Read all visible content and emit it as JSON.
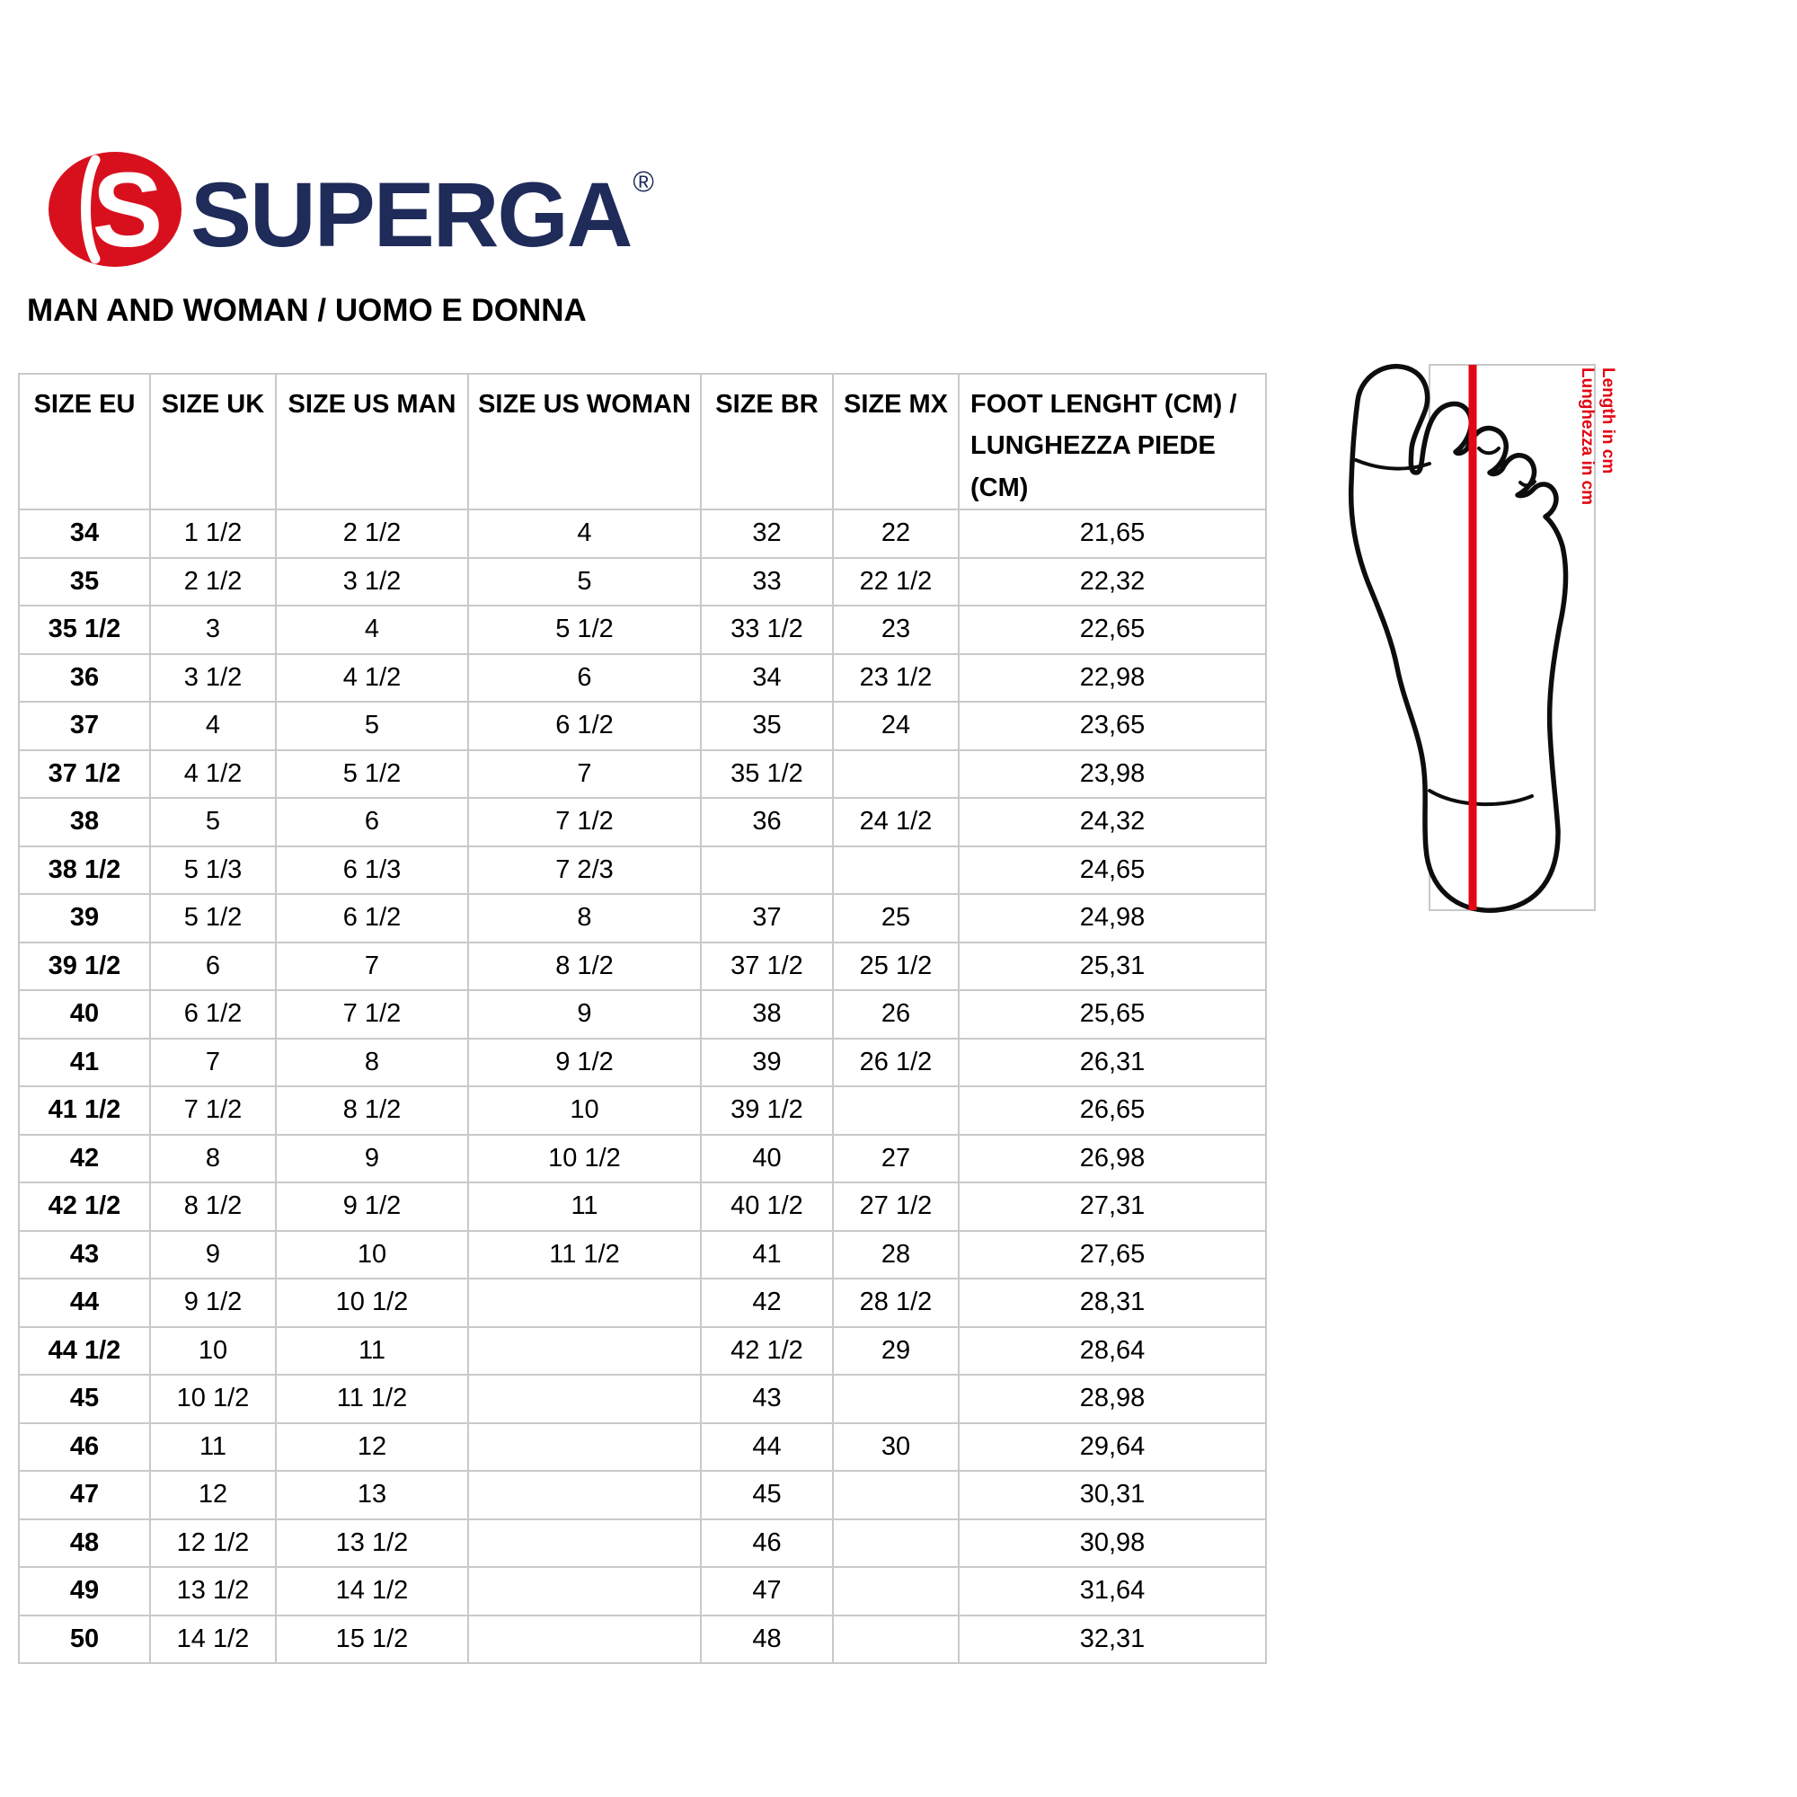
{
  "logo": {
    "brand": "SUPERGA",
    "registered_mark": "®",
    "emblem_letter": "S",
    "red": "#d8101e",
    "navy": "#1f2b59"
  },
  "subtitle": "MAN AND WOMAN / UOMO E DONNA",
  "size_table": {
    "headers": [
      "SIZE EU",
      "SIZE UK",
      "SIZE US MAN",
      "SIZE US WOMAN",
      "SIZE BR",
      "SIZE MX",
      "FOOT LENGHT (CM) /\nLUNGHEZZA PIEDE (CM)"
    ],
    "rows": [
      [
        "34",
        "1 1/2",
        "2 1/2",
        "4",
        "32",
        "22",
        "21,65"
      ],
      [
        "35",
        "2 1/2",
        "3 1/2",
        "5",
        "33",
        "22 1/2",
        "22,32"
      ],
      [
        "35 1/2",
        "3",
        "4",
        "5 1/2",
        "33 1/2",
        "23",
        "22,65"
      ],
      [
        "36",
        "3 1/2",
        "4 1/2",
        "6",
        "34",
        "23 1/2",
        "22,98"
      ],
      [
        "37",
        "4",
        "5",
        "6 1/2",
        "35",
        "24",
        "23,65"
      ],
      [
        "37 1/2",
        "4 1/2",
        "5 1/2",
        "7",
        "35 1/2",
        "",
        "23,98"
      ],
      [
        "38",
        "5",
        "6",
        "7 1/2",
        "36",
        "24 1/2",
        "24,32"
      ],
      [
        "38 1/2",
        "5 1/3",
        "6 1/3",
        "7 2/3",
        "",
        "",
        "24,65"
      ],
      [
        "39",
        "5 1/2",
        "6 1/2",
        "8",
        "37",
        "25",
        "24,98"
      ],
      [
        "39 1/2",
        "6",
        "7",
        "8 1/2",
        "37 1/2",
        "25 1/2",
        "25,31"
      ],
      [
        "40",
        "6 1/2",
        "7 1/2",
        "9",
        "38",
        "26",
        "25,65"
      ],
      [
        "41",
        "7",
        "8",
        "9 1/2",
        "39",
        "26 1/2",
        "26,31"
      ],
      [
        "41 1/2",
        "7 1/2",
        "8 1/2",
        "10",
        "39 1/2",
        "",
        "26,65"
      ],
      [
        "42",
        "8",
        "9",
        "10 1/2",
        "40",
        "27",
        "26,98"
      ],
      [
        "42 1/2",
        "8 1/2",
        "9 1/2",
        "11",
        "40 1/2",
        "27 1/2",
        "27,31"
      ],
      [
        "43",
        "9",
        "10",
        "11 1/2",
        "41",
        "28",
        "27,65"
      ],
      [
        "44",
        "9 1/2",
        "10 1/2",
        "",
        "42",
        "28 1/2",
        "28,31"
      ],
      [
        "44 1/2",
        "10",
        "11",
        "",
        "42 1/2",
        "29",
        "28,64"
      ],
      [
        "45",
        "10 1/2",
        "11 1/2",
        "",
        "43",
        "",
        "28,98"
      ],
      [
        "46",
        "11",
        "12",
        "",
        "44",
        "30",
        "29,64"
      ],
      [
        "47",
        "12",
        "13",
        "",
        "45",
        "",
        "30,31"
      ],
      [
        "48",
        "12 1/2",
        "13 1/2",
        "",
        "46",
        "",
        "30,98"
      ],
      [
        "49",
        "13 1/2",
        "14 1/2",
        "",
        "47",
        "",
        "31,64"
      ],
      [
        "50",
        "14 1/2",
        "15 1/2",
        "",
        "48",
        "",
        "32,31"
      ]
    ]
  },
  "diagram": {
    "label_en": "Length in cm",
    "label_it": "Lunghezza in cm",
    "line_color": "#e30613"
  }
}
